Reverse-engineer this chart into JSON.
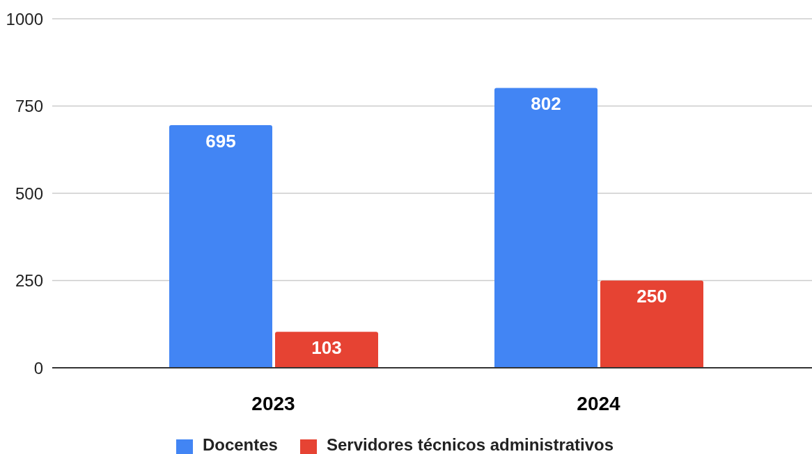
{
  "chart_data": {
    "type": "bar",
    "categories": [
      "2023",
      "2024"
    ],
    "series": [
      {
        "name": "Docentes",
        "color": "#4285f4",
        "values": [
          695,
          802
        ]
      },
      {
        "name": "Servidores técnicos administrativos",
        "color": "#e64333",
        "values": [
          103,
          250
        ]
      }
    ],
    "ylim": [
      0,
      1000
    ],
    "yticks": [
      0,
      250,
      500,
      750,
      1000
    ],
    "grid": "y",
    "legend": "bottom",
    "data_labels": true
  }
}
